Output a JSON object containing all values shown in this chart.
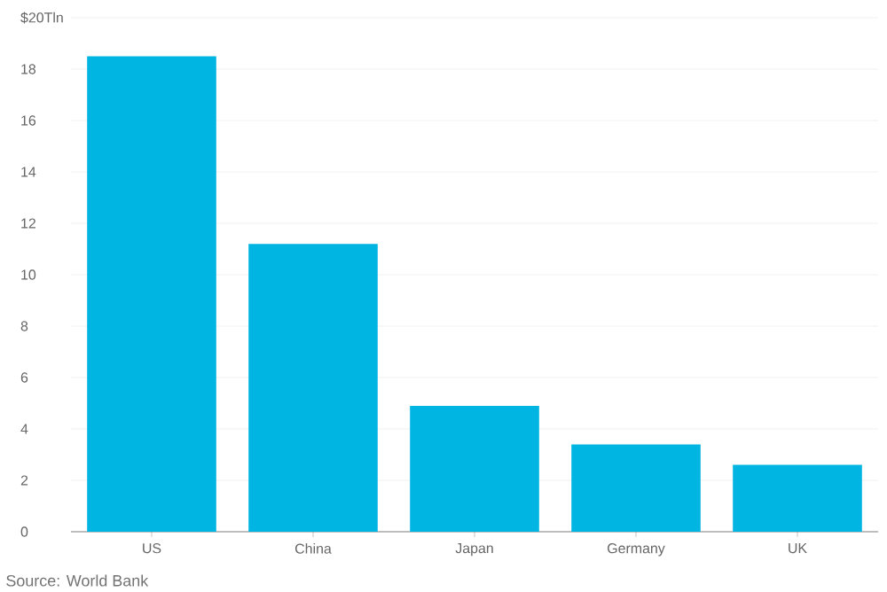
{
  "chart_data": {
    "type": "bar",
    "categories": [
      "US",
      "China",
      "Japan",
      "Germany",
      "UK"
    ],
    "values": [
      18.5,
      11.2,
      4.9,
      3.4,
      2.6
    ],
    "color": "#00b5e2",
    "ylim": [
      0,
      20
    ],
    "yticks": [
      0,
      2,
      4,
      6,
      8,
      10,
      12,
      14,
      16,
      18,
      {
        "value": 20,
        "label": "$20Tln"
      }
    ],
    "grid": "y",
    "annotations": [
      "Source: World Bank"
    ]
  }
}
